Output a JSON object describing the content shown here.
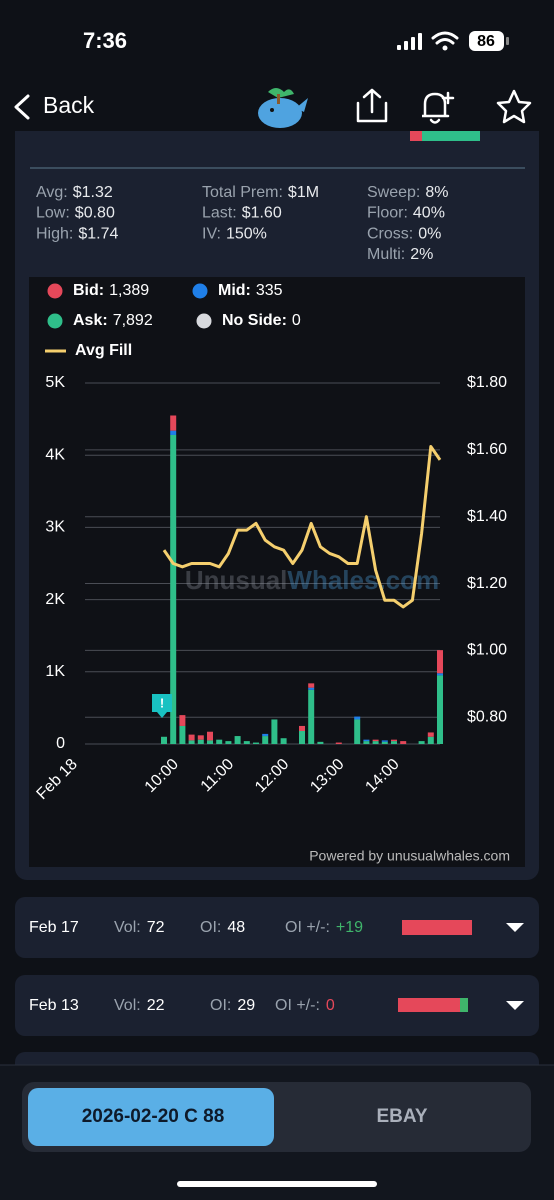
{
  "status_bar": {
    "time": "7:36",
    "battery": "86"
  },
  "nav": {
    "back": "Back"
  },
  "stats": [
    [
      {
        "label": "Avg:",
        "value": "$1.32"
      },
      {
        "label": "Low:",
        "value": "$0.80"
      },
      {
        "label": "High:",
        "value": "$1.74"
      }
    ],
    [
      {
        "label": "Total Prem:",
        "value": "$1M"
      },
      {
        "label": "Last:",
        "value": "$1.60"
      },
      {
        "label": "IV:",
        "value": "150%"
      }
    ],
    [
      {
        "label": "Sweep:",
        "value": "8%"
      },
      {
        "label": "Floor:",
        "value": "40%"
      },
      {
        "label": "Cross:",
        "value": "0%"
      },
      {
        "label": "Multi:",
        "value": "2%"
      }
    ]
  ],
  "chart_data": {
    "type": "bar",
    "categories": [
      "Feb 18",
      null,
      null,
      null,
      null,
      null,
      null,
      null,
      null,
      null,
      null,
      "10:00",
      null,
      null,
      null,
      null,
      null,
      "11:00",
      null,
      null,
      null,
      null,
      null,
      "12:00",
      null,
      null,
      null,
      null,
      null,
      "13:00",
      null,
      null,
      null,
      null,
      null,
      "14:00",
      null,
      null,
      null,
      null,
      null
    ],
    "series": [
      {
        "name": "Bid:",
        "total": "1,389",
        "color": "#e5485a",
        "values": [
          0,
          0,
          0,
          0,
          0,
          0,
          0,
          0,
          0,
          0,
          0,
          210,
          150,
          80,
          60,
          120,
          0,
          0,
          0,
          0,
          0,
          0,
          0,
          0,
          0,
          70,
          60,
          0,
          0,
          20,
          0,
          0,
          0,
          20,
          0,
          20,
          40,
          0,
          0,
          60,
          320
        ]
      },
      {
        "name": "Mid:",
        "total": "335",
        "color": "#1f7fe8",
        "values": [
          0,
          0,
          0,
          0,
          0,
          0,
          0,
          0,
          0,
          0,
          0,
          60,
          0,
          0,
          0,
          0,
          0,
          0,
          0,
          0,
          0,
          30,
          0,
          0,
          0,
          0,
          30,
          0,
          0,
          0,
          0,
          40,
          20,
          0,
          20,
          0,
          0,
          0,
          0,
          0,
          30
        ]
      },
      {
        "name": "Ask:",
        "total": "7,892",
        "color": "#2fbf8a",
        "values": [
          0,
          0,
          0,
          0,
          0,
          0,
          0,
          0,
          0,
          0,
          100,
          4280,
          250,
          50,
          60,
          50,
          60,
          40,
          110,
          40,
          20,
          110,
          340,
          80,
          0,
          180,
          750,
          30,
          0,
          0,
          0,
          340,
          40,
          40,
          30,
          40,
          0,
          0,
          40,
          100,
          950
        ]
      },
      {
        "name": "No Side:",
        "total": "0",
        "color": "#d8dade",
        "values": [
          0,
          0,
          0,
          0,
          0,
          0,
          0,
          0,
          0,
          0,
          0,
          0,
          0,
          0,
          0,
          0,
          0,
          0,
          0,
          0,
          0,
          0,
          0,
          0,
          0,
          0,
          0,
          0,
          0,
          0,
          0,
          0,
          0,
          0,
          0,
          0,
          0,
          0,
          0,
          0,
          0
        ]
      },
      {
        "name": "Avg Fill",
        "type": "line",
        "axis": "y2",
        "color": "#f5cf6e",
        "values": [
          null,
          null,
          null,
          null,
          null,
          null,
          null,
          null,
          null,
          null,
          1.3,
          1.26,
          1.25,
          1.26,
          1.26,
          1.26,
          1.25,
          1.29,
          1.36,
          1.36,
          1.38,
          1.33,
          1.31,
          1.3,
          1.26,
          1.3,
          1.38,
          1.31,
          1.29,
          1.28,
          1.26,
          1.26,
          1.4,
          1.24,
          1.15,
          1.15,
          1.13,
          1.15,
          1.35,
          1.61,
          1.57
        ]
      }
    ],
    "stacked": true,
    "ylim": [
      0,
      5000
    ],
    "yticks": [
      0,
      {
        "value": 1000,
        "label": "1K"
      },
      {
        "value": 2000,
        "label": "2K"
      },
      {
        "value": 3000,
        "label": "3K"
      },
      {
        "value": 4000,
        "label": "4K"
      },
      {
        "value": 5000,
        "label": "5K"
      }
    ],
    "y2lim": [
      0.72,
      1.8
    ],
    "y2ticks": [
      {
        "value": 0.8,
        "label": "$0.80"
      },
      {
        "value": 1.0,
        "label": "$1.00"
      },
      {
        "value": 1.2,
        "label": "$1.20"
      },
      {
        "value": 1.4,
        "label": "$1.40"
      },
      {
        "value": 1.6,
        "label": "$1.60"
      },
      {
        "value": 1.8,
        "label": "$1.80"
      }
    ],
    "grid": true,
    "annotations": [
      "!"
    ],
    "watermark": [
      "Unusual",
      "Whales.com"
    ],
    "credit": "Powered by unusualwhales.com"
  },
  "expiries": [
    {
      "date": "Feb 17",
      "vol_label": "Vol:",
      "vol": 72,
      "oi_label": "OI:",
      "oi": 48,
      "change_label": "OI +/-:",
      "change": "+19"
    },
    {
      "date": "Feb 13",
      "vol_label": "Vol:",
      "vol": 22,
      "oi_label": "OI:",
      "oi": 29,
      "change_label": "OI +/-:",
      "change": 0
    }
  ],
  "tabs": [
    "2026-02-20 C 88",
    "EBAY"
  ]
}
